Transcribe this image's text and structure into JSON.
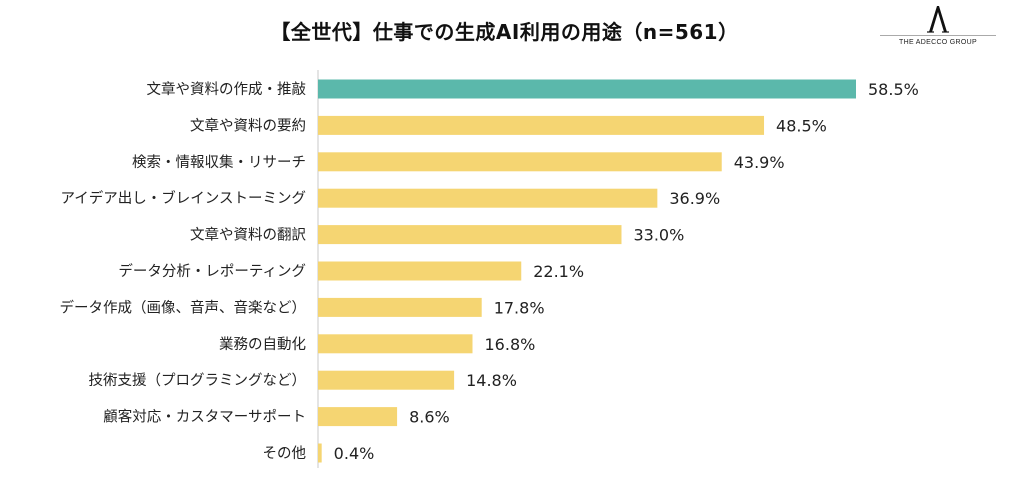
{
  "title": "【全世代】仕事での生成AI利用の用途（n=561）",
  "logo": {
    "text": "THE ADECCO GROUP"
  },
  "colors": {
    "highlight": "#5bb8ab",
    "bar": "#f5d572",
    "axis": "#c8c8c8"
  },
  "chart_data": {
    "type": "bar",
    "orientation": "horizontal",
    "title": "【全世代】仕事での生成AI利用の用途（n=561）",
    "categories": [
      "文章や資料の作成・推敲",
      "文章や資料の要約",
      "検索・情報収集・リサーチ",
      "アイデア出し・ブレインストーミング",
      "文章や資料の翻訳",
      "データ分析・レポーティング",
      "データ作成（画像、音声、音楽など）",
      "業務の自動化",
      "技術支援（プログラミングなど）",
      "顧客対応・カスタマーサポート",
      "その他"
    ],
    "values": [
      58.5,
      48.5,
      43.9,
      36.9,
      33.0,
      22.1,
      17.8,
      16.8,
      14.8,
      8.6,
      0.4
    ],
    "value_labels": [
      "58.5%",
      "48.5%",
      "43.9%",
      "36.9%",
      "33.0%",
      "22.1%",
      "17.8%",
      "16.8%",
      "14.8%",
      "8.6%",
      "0.4%"
    ],
    "highlight_index": 0,
    "xlim": [
      0,
      58.5
    ],
    "grid": false,
    "legend": "none"
  }
}
